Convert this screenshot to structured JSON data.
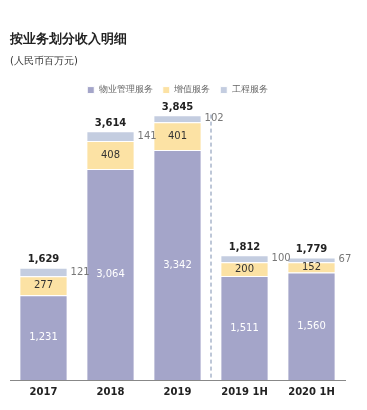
{
  "chart_data": {
    "type": "bar",
    "title": "按业务划分收入明细",
    "subtitle": "(人民币百万元)",
    "categories": [
      "2017",
      "2018",
      "2019",
      "2019 1H",
      "2020 1H"
    ],
    "series": [
      {
        "name": "物业管理服务",
        "color": "#a4a5c9",
        "values": [
          1231,
          3064,
          3342,
          1511,
          1560
        ],
        "value_labels": [
          "1,231",
          "3,064",
          "3,342",
          "1,511",
          "1,560"
        ]
      },
      {
        "name": "增值服务",
        "color": "#fce2a4",
        "values": [
          277,
          408,
          401,
          200,
          152
        ]
      },
      {
        "name": "工程服务",
        "color": "#c4cde0",
        "values": [
          121,
          141,
          102,
          100,
          67
        ]
      }
    ],
    "totals": [
      1629,
      3614,
      3845,
      1812,
      1779
    ],
    "total_labels": [
      "1,629",
      "3,614",
      "3,845",
      "1,812",
      "1,779"
    ],
    "ylim": [
      0,
      4000
    ],
    "stacked": true,
    "data_labels": true,
    "grid": false,
    "legend": "top",
    "tick_labels": "x"
  }
}
